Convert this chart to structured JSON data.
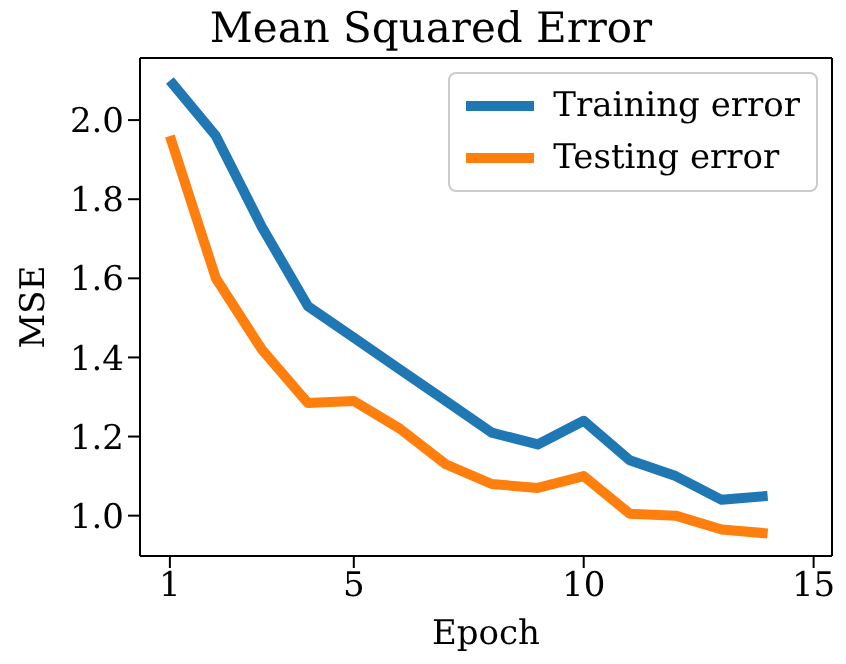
{
  "chart_data": {
    "type": "line",
    "title": "Mean Squared Error",
    "xlabel": "Epoch",
    "ylabel": "MSE",
    "x": [
      1,
      2,
      3,
      4,
      5,
      6,
      7,
      8,
      9,
      10,
      11,
      12,
      13,
      14
    ],
    "series": [
      {
        "name": "Training error",
        "color": "#1f77b4",
        "values": [
          2.1,
          1.96,
          1.73,
          1.53,
          1.45,
          1.37,
          1.29,
          1.21,
          1.18,
          1.24,
          1.14,
          1.1,
          1.04,
          1.05
        ]
      },
      {
        "name": "Testing error",
        "color": "#ff7f0e",
        "values": [
          1.96,
          1.6,
          1.42,
          1.285,
          1.29,
          1.22,
          1.13,
          1.08,
          1.07,
          1.1,
          1.005,
          1.0,
          0.965,
          0.955
        ]
      }
    ],
    "xlim": [
      0.35,
      15.4
    ],
    "xticks": [
      1,
      5,
      10,
      15
    ],
    "ylim": [
      0.898,
      2.157
    ],
    "yticks": [
      {
        "value": 1.0,
        "label": "1.0"
      },
      {
        "value": 1.2,
        "label": "1.2"
      },
      {
        "value": 1.4,
        "label": "1.4"
      },
      {
        "value": 1.6,
        "label": "1.6"
      },
      {
        "value": 1.8,
        "label": "1.8"
      },
      {
        "value": 2.0,
        "label": "2.0"
      }
    ],
    "grid": false,
    "legend": "top right",
    "marker": "none",
    "line_style": "solid"
  }
}
